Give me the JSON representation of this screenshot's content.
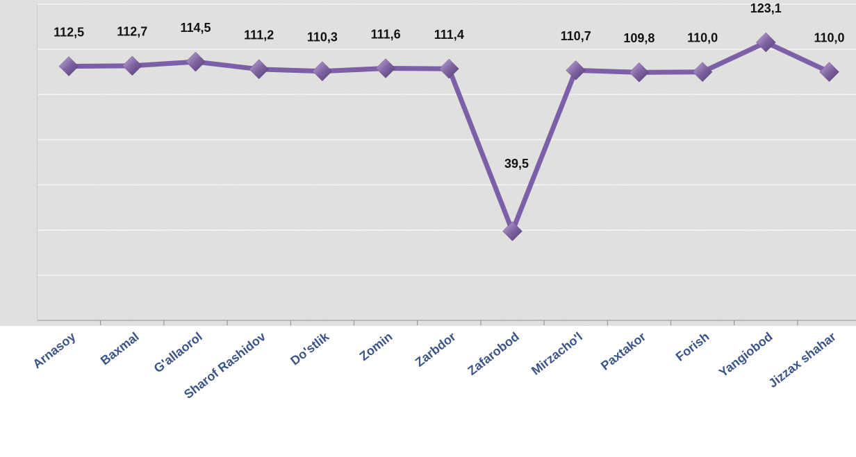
{
  "chart_data": {
    "type": "line",
    "categories": [
      "Arnasoy",
      "Baxmal",
      "G'allaorol",
      "Sharof Rashidov",
      "Do'stlik",
      "Zomin",
      "Zarbdor",
      "Zafarobod",
      "Mirzacho'l",
      "Paxtakor",
      "Forish",
      "Yangiobod",
      "Jizzax shahar"
    ],
    "series": [
      {
        "name": null,
        "color": "#7d5fa8",
        "values": [
          112.5,
          112.7,
          114.5,
          111.2,
          110.3,
          111.6,
          111.4,
          39.5,
          110.7,
          109.8,
          110.0,
          123.1,
          110.0
        ],
        "value_labels": [
          "112,5",
          "112,7",
          "114,5",
          "111,2",
          "110,3",
          "111,6",
          "111,4",
          "39,5",
          "110,7",
          "109,8",
          "110,0",
          "123,1",
          "110,0"
        ]
      }
    ],
    "ylim": [
      0,
      140
    ],
    "yticks": [
      0,
      20,
      40,
      60,
      80,
      100,
      120,
      140
    ],
    "grid": true
  }
}
